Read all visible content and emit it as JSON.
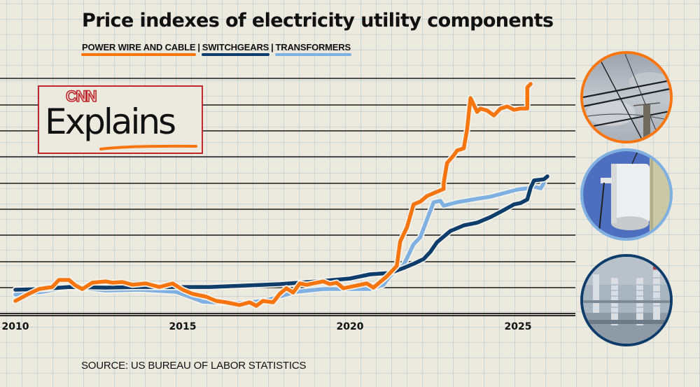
{
  "chart_data": {
    "type": "line",
    "title": "Price indexes of electricity utility components",
    "xlabel": "",
    "ylabel": "",
    "note": "Y values are estimated relative index levels (no y-axis labels shown)",
    "xlim": [
      2010,
      2026.5
    ],
    "ylim": [
      80,
      270
    ],
    "x_ticks": [
      "2010",
      "2015",
      "2020",
      "2025"
    ],
    "grid": "horizontal",
    "legend_position": "top",
    "series": [
      {
        "name": "POWER WIRE AND CABLE",
        "color": "#F7750F",
        "points": [
          [
            2010.0,
            89.8
          ],
          [
            2010.4,
            95.2
          ],
          [
            2010.7,
            98.9
          ],
          [
            2011.1,
            100.5
          ],
          [
            2011.3,
            105.9
          ],
          [
            2011.6,
            105.9
          ],
          [
            2011.8,
            101.6
          ],
          [
            2012.0,
            98.9
          ],
          [
            2012.3,
            103.8
          ],
          [
            2012.7,
            104.8
          ],
          [
            2012.9,
            103.8
          ],
          [
            2013.2,
            104.3
          ],
          [
            2013.5,
            102.2
          ],
          [
            2013.9,
            103.2
          ],
          [
            2014.3,
            100.5
          ],
          [
            2014.7,
            103.2
          ],
          [
            2015.0,
            98.4
          ],
          [
            2015.3,
            95.2
          ],
          [
            2015.7,
            93.0
          ],
          [
            2016.0,
            89.8
          ],
          [
            2016.3,
            88.7
          ],
          [
            2016.7,
            86.6
          ],
          [
            2017.0,
            88.7
          ],
          [
            2017.2,
            86.0
          ],
          [
            2017.4,
            89.8
          ],
          [
            2017.7,
            88.7
          ],
          [
            2017.9,
            95.2
          ],
          [
            2018.1,
            99.5
          ],
          [
            2018.3,
            96.2
          ],
          [
            2018.5,
            103.2
          ],
          [
            2018.7,
            102.2
          ],
          [
            2019.2,
            104.8
          ],
          [
            2019.4,
            102.7
          ],
          [
            2019.6,
            103.8
          ],
          [
            2019.8,
            99.5
          ],
          [
            2020.2,
            101.6
          ],
          [
            2020.5,
            103.2
          ],
          [
            2020.7,
            100.0
          ],
          [
            2020.9,
            104.3
          ],
          [
            2021.1,
            108.6
          ],
          [
            2021.4,
            116.7
          ],
          [
            2021.5,
            135.5
          ],
          [
            2021.7,
            146.2
          ],
          [
            2021.9,
            163.9
          ],
          [
            2022.1,
            166.1
          ],
          [
            2022.3,
            170.4
          ],
          [
            2022.5,
            172.6
          ],
          [
            2022.8,
            175.8
          ],
          [
            2022.8,
            180.1
          ],
          [
            2022.9,
            195.7
          ],
          [
            2023.1,
            201.6
          ],
          [
            2023.2,
            205.4
          ],
          [
            2023.4,
            207.0
          ],
          [
            2023.5,
            221.5
          ],
          [
            2023.6,
            245.7
          ],
          [
            2023.8,
            235.0
          ],
          [
            2023.9,
            237.6
          ],
          [
            2024.1,
            236.0
          ],
          [
            2024.3,
            232.3
          ],
          [
            2024.5,
            237.6
          ],
          [
            2024.7,
            239.2
          ],
          [
            2024.9,
            236.6
          ],
          [
            2025.1,
            237.6
          ],
          [
            2025.3,
            237.6
          ],
          [
            2025.3,
            253.8
          ],
          [
            2025.4,
            256.5
          ]
        ]
      },
      {
        "name": "SWITCHGEARS",
        "color": "#0E3D6B",
        "points": [
          [
            2010.0,
            98.4
          ],
          [
            2010.8,
            98.9
          ],
          [
            2011.6,
            100.5
          ],
          [
            2012.7,
            100.0
          ],
          [
            2013.7,
            100.5
          ],
          [
            2014.8,
            100.5
          ],
          [
            2015.8,
            100.5
          ],
          [
            2016.9,
            101.6
          ],
          [
            2017.9,
            102.7
          ],
          [
            2019.0,
            104.8
          ],
          [
            2020.0,
            107.0
          ],
          [
            2020.6,
            110.2
          ],
          [
            2021.2,
            111.3
          ],
          [
            2021.6,
            115.1
          ],
          [
            2021.9,
            118.3
          ],
          [
            2022.2,
            122.0
          ],
          [
            2022.4,
            127.4
          ],
          [
            2022.6,
            134.9
          ],
          [
            2023.0,
            143.5
          ],
          [
            2023.4,
            147.8
          ],
          [
            2023.8,
            149.9
          ],
          [
            2024.2,
            154.2
          ],
          [
            2024.6,
            159.6
          ],
          [
            2024.9,
            163.9
          ],
          [
            2025.1,
            165.0
          ],
          [
            2025.3,
            167.7
          ],
          [
            2025.4,
            176.9
          ],
          [
            2025.5,
            182.3
          ],
          [
            2025.8,
            183.3
          ],
          [
            2025.9,
            185.5
          ]
        ]
      },
      {
        "name": "TRANSFORMERS",
        "color": "#7FB0E2",
        "points": [
          [
            2010.0,
            94.6
          ],
          [
            2010.8,
            96.8
          ],
          [
            2011.6,
            100.5
          ],
          [
            2012.3,
            98.9
          ],
          [
            2012.7,
            97.8
          ],
          [
            2013.7,
            98.4
          ],
          [
            2014.8,
            96.8
          ],
          [
            2015.2,
            93.0
          ],
          [
            2015.6,
            89.2
          ],
          [
            2016.3,
            88.2
          ],
          [
            2016.9,
            88.2
          ],
          [
            2017.5,
            90.3
          ],
          [
            2018.4,
            96.8
          ],
          [
            2019.2,
            98.9
          ],
          [
            2020.0,
            98.9
          ],
          [
            2020.6,
            98.9
          ],
          [
            2021.0,
            102.2
          ],
          [
            2021.2,
            109.1
          ],
          [
            2021.6,
            117.2
          ],
          [
            2021.9,
            133.3
          ],
          [
            2022.1,
            138.7
          ],
          [
            2022.3,
            152.2
          ],
          [
            2022.5,
            165.6
          ],
          [
            2022.7,
            166.7
          ],
          [
            2022.8,
            162.9
          ],
          [
            2023.2,
            165.6
          ],
          [
            2023.8,
            168.3
          ],
          [
            2024.2,
            169.9
          ],
          [
            2024.6,
            172.6
          ],
          [
            2025.0,
            175.3
          ],
          [
            2025.3,
            176.3
          ],
          [
            2025.5,
            177.4
          ],
          [
            2025.7,
            176.3
          ],
          [
            2025.8,
            180.6
          ]
        ]
      }
    ]
  },
  "header": {
    "title": "Price indexes of electricity utility components",
    "legend": [
      "POWER WIRE AND CABLE",
      "SWITCHGEARS",
      "TRANSFORMERS"
    ],
    "separator": "|"
  },
  "logo": {
    "brand": "CNN",
    "text": "Explains"
  },
  "source": "SOURCE: US BUREAU OF LABOR STATISTICS",
  "photos": [
    {
      "subject": "power-lines-photo",
      "ring_color": "#F7750F"
    },
    {
      "subject": "transformer-photo",
      "ring_color": "#7FB0E2"
    },
    {
      "subject": "switchgear-photo",
      "ring_color": "#0E3D6B"
    }
  ],
  "colors": {
    "background": "#ECE9DE",
    "orange": "#F7750F",
    "navy": "#0E3D6B",
    "light_blue": "#7FB0E2",
    "logo_red": "#C0282D"
  }
}
